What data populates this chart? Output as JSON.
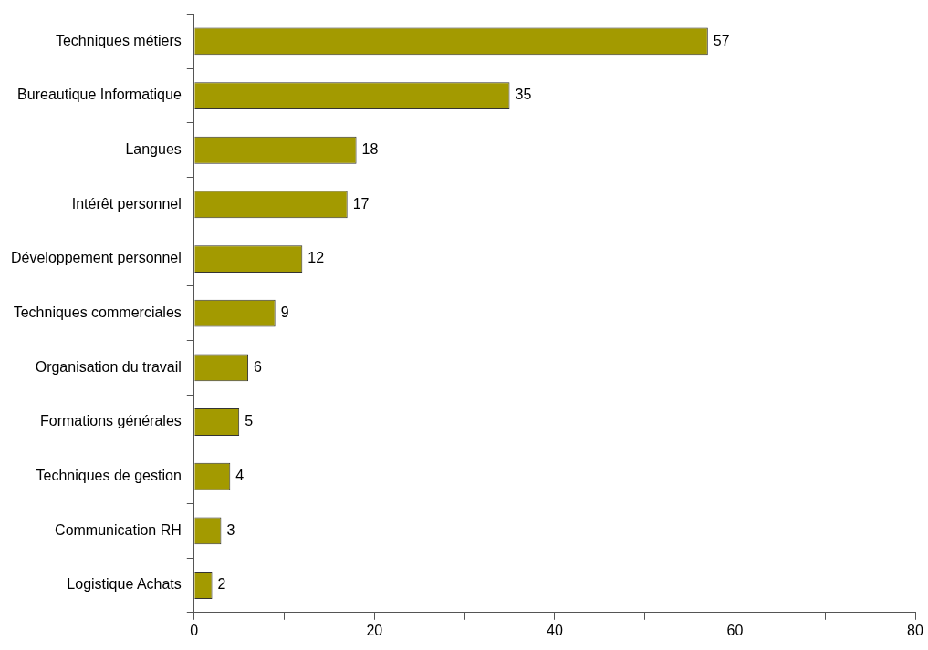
{
  "chart_data": {
    "type": "bar",
    "orientation": "horizontal",
    "categories": [
      "Techniques métiers",
      "Bureautique Informatique",
      "Langues",
      "Intérêt personnel",
      "Développement personnel",
      "Techniques commerciales",
      "Organisation du travail",
      "Formations générales",
      "Techniques de gestion",
      "Communication RH",
      "Logistique Achats"
    ],
    "values": [
      57,
      35,
      18,
      17,
      12,
      9,
      6,
      5,
      4,
      3,
      2
    ],
    "color": "#a39a00",
    "xlim": [
      0,
      80
    ],
    "xticks": [
      0,
      {
        "value": 10,
        "label": null
      },
      20,
      {
        "value": 30,
        "label": null
      },
      40,
      {
        "value": 50,
        "label": null
      },
      60,
      {
        "value": 70,
        "label": null
      },
      80
    ],
    "grid": false,
    "legend": false,
    "data_labels": true
  }
}
